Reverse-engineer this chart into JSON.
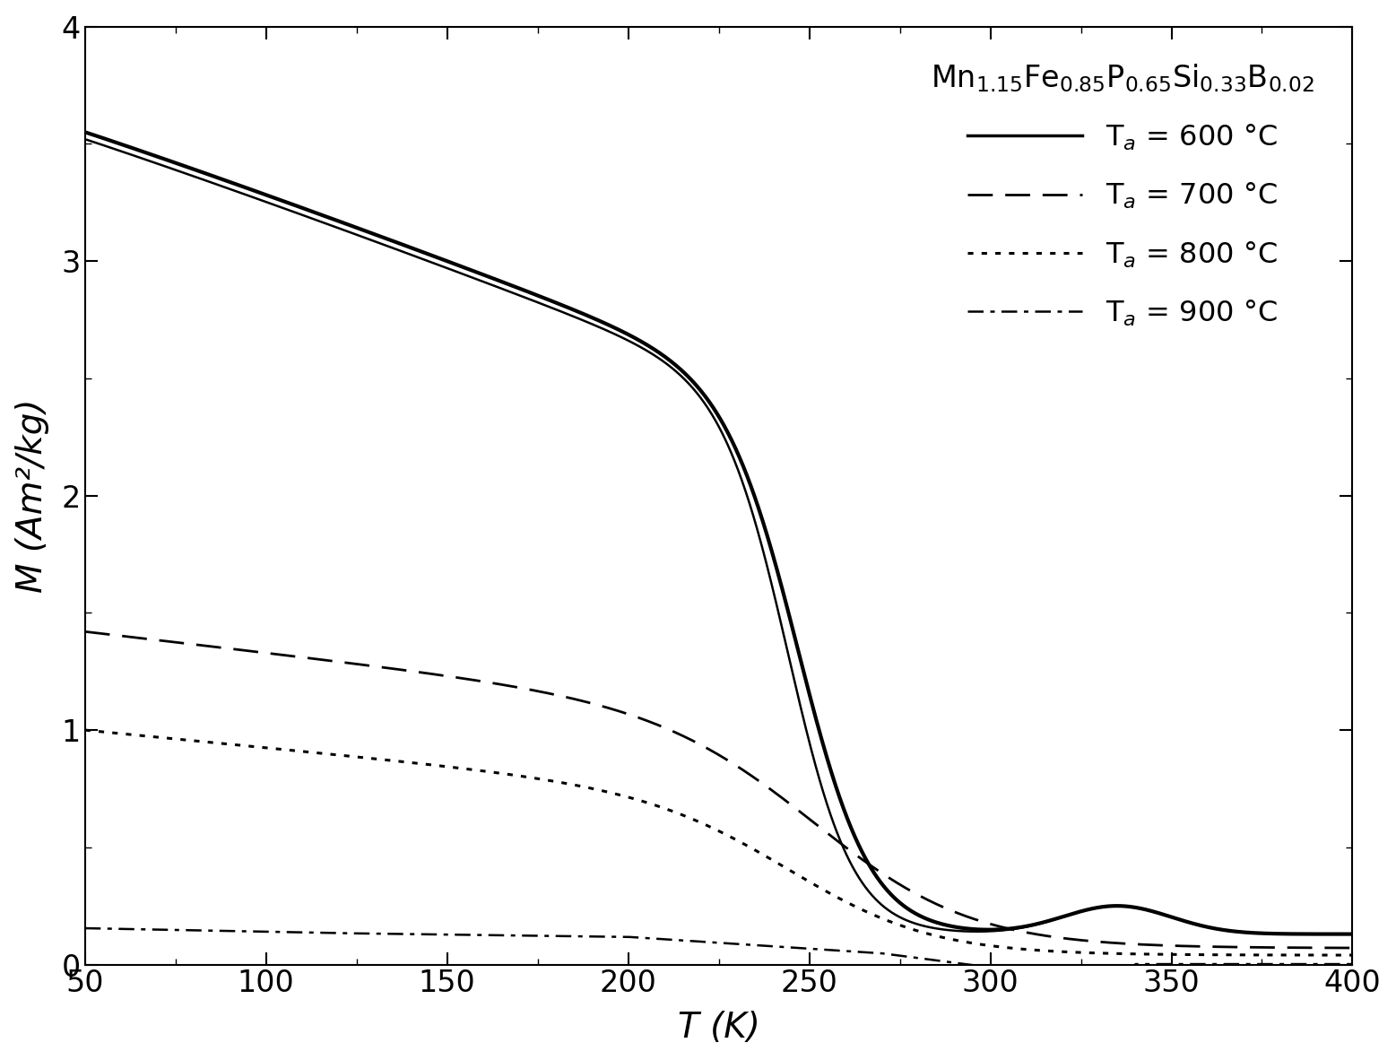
{
  "xlabel": "T (K)",
  "ylabel": "M (Am²/kg)",
  "xlim": [
    50,
    400
  ],
  "ylim": [
    0,
    4
  ],
  "yticks": [
    0,
    1,
    2,
    3,
    4
  ],
  "xticks": [
    50,
    100,
    150,
    200,
    250,
    300,
    350,
    400
  ],
  "formula": "Mn$_{1.15}$Fe$_{0.85}$P$_{0.65}$Si$_{0.33}$B$_{0.02}$",
  "legend_entries": [
    {
      "label": "T$_{a}$ = 600 °C"
    },
    {
      "label": "T$_{a}$ = 700 °C"
    },
    {
      "label": "T$_{a}$ = 800 °C"
    },
    {
      "label": "T$_{a}$ = 900 °C"
    }
  ],
  "line_color": "#000000",
  "background_color": "#ffffff"
}
